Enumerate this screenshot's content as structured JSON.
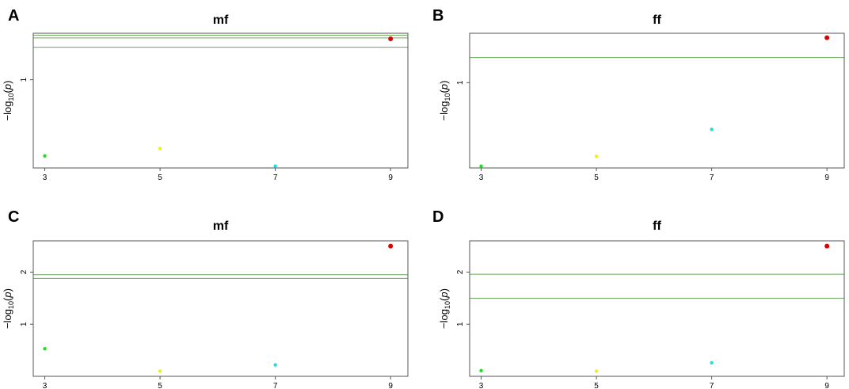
{
  "chart_data": [
    {
      "panel": "A",
      "type": "scatter",
      "title": "mf",
      "ylabel": "−log10(p)",
      "xlim": [
        2.8,
        9.3
      ],
      "ylim": [
        0.05,
        1.5
      ],
      "x_ticks": [
        "3",
        "5",
        "7",
        "9"
      ],
      "y_ticks": [
        "1"
      ],
      "points": [
        {
          "x": 3,
          "y": 0.18,
          "color": "#22dd22"
        },
        {
          "x": 5,
          "y": 0.26,
          "color": "#eeee22"
        },
        {
          "x": 7,
          "y": 0.07,
          "color": "#22dddd"
        },
        {
          "x": 9,
          "y": 1.44,
          "color": "#dd0000"
        }
      ],
      "threshold_lines": [
        1.48,
        1.45,
        1.35
      ],
      "threshold_color": "#66aa55"
    },
    {
      "panel": "B",
      "type": "scatter",
      "title": "ff",
      "ylabel": "−log10(p)",
      "xlim": [
        2.8,
        9.3
      ],
      "ylim": [
        0.05,
        1.55
      ],
      "x_ticks": [
        "3",
        "5",
        "7",
        "9"
      ],
      "y_ticks": [
        "1"
      ],
      "points": [
        {
          "x": 3,
          "y": 0.07,
          "color": "#22dd22"
        },
        {
          "x": 5,
          "y": 0.18,
          "color": "#eeee22"
        },
        {
          "x": 7,
          "y": 0.48,
          "color": "#22dddd"
        },
        {
          "x": 9,
          "y": 1.5,
          "color": "#dd0000"
        }
      ],
      "threshold_lines": [
        1.28
      ],
      "threshold_color": "#66aa55"
    },
    {
      "panel": "C",
      "type": "scatter",
      "title": "mf",
      "ylabel": "−log10(p)",
      "xlim": [
        2.8,
        9.3
      ],
      "ylim": [
        0.0,
        2.6
      ],
      "x_ticks": [
        "3",
        "5",
        "7",
        "9"
      ],
      "y_ticks": [
        "1",
        "2"
      ],
      "points": [
        {
          "x": 3,
          "y": 0.53,
          "color": "#22dd22"
        },
        {
          "x": 5,
          "y": 0.1,
          "color": "#eeee22"
        },
        {
          "x": 7,
          "y": 0.22,
          "color": "#22dddd"
        },
        {
          "x": 9,
          "y": 2.5,
          "color": "#dd0000"
        }
      ],
      "threshold_lines": [
        1.95,
        1.88
      ],
      "threshold_color": "#66aa55"
    },
    {
      "panel": "D",
      "type": "scatter",
      "title": "ff",
      "ylabel": "−log10(p)",
      "xlim": [
        2.8,
        9.3
      ],
      "ylim": [
        0.0,
        2.6
      ],
      "x_ticks": [
        "3",
        "5",
        "7",
        "9"
      ],
      "y_ticks": [
        "1",
        "2"
      ],
      "points": [
        {
          "x": 3,
          "y": 0.11,
          "color": "#22dd22"
        },
        {
          "x": 5,
          "y": 0.1,
          "color": "#eeee22"
        },
        {
          "x": 7,
          "y": 0.26,
          "color": "#22dddd"
        },
        {
          "x": 9,
          "y": 2.5,
          "color": "#dd0000"
        }
      ],
      "threshold_lines": [
        1.96,
        1.5
      ],
      "threshold_color": "#66aa55"
    }
  ]
}
